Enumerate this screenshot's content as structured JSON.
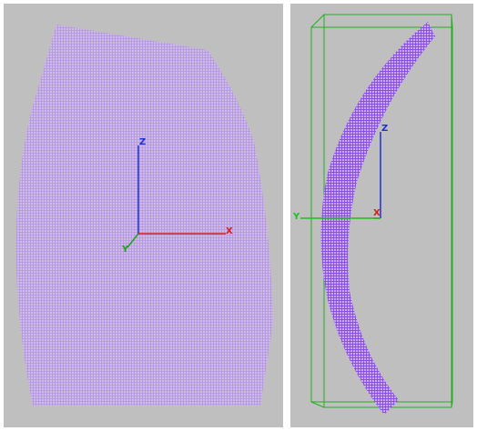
{
  "panels": [
    {
      "axes": {
        "z": "Z",
        "x": "X",
        "y": "Y"
      }
    },
    {
      "axes": {
        "z": "Z",
        "x": "X",
        "y": "Y"
      }
    }
  ]
}
